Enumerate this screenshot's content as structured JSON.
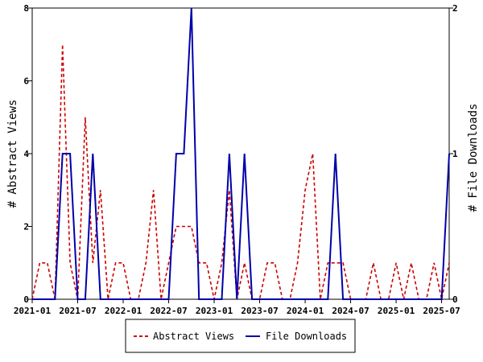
{
  "chart_data": {
    "type": "line",
    "title": "",
    "ylabel_left": "# Abstract Views",
    "ylabel_right": "# File Downloads",
    "xlabel": "",
    "x_tick_labels": [
      "2021-01",
      "2021-07",
      "2022-01",
      "2022-07",
      "2023-01",
      "2023-07",
      "2024-01",
      "2024-07",
      "2025-01",
      "2025-07"
    ],
    "y_left_ticks": [
      "0",
      "2",
      "4",
      "6",
      "8"
    ],
    "y_right_ticks": [
      "0",
      "1",
      "2"
    ],
    "ylim_left": [
      0,
      8
    ],
    "ylim_right": [
      0,
      2
    ],
    "xlim": [
      "2021-01",
      "2025-08"
    ],
    "x": [
      "2021-01",
      "2021-02",
      "2021-03",
      "2021-04",
      "2021-05",
      "2021-06",
      "2021-07",
      "2021-08",
      "2021-09",
      "2021-10",
      "2021-11",
      "2021-12",
      "2022-01",
      "2022-02",
      "2022-03",
      "2022-04",
      "2022-05",
      "2022-06",
      "2022-07",
      "2022-08",
      "2022-09",
      "2022-10",
      "2022-11",
      "2022-12",
      "2023-01",
      "2023-02",
      "2023-03",
      "2023-04",
      "2023-05",
      "2023-06",
      "2023-07",
      "2023-08",
      "2023-09",
      "2023-10",
      "2023-11",
      "2023-12",
      "2024-01",
      "2024-02",
      "2024-03",
      "2024-04",
      "2024-05",
      "2024-06",
      "2024-07",
      "2024-08",
      "2024-09",
      "2024-10",
      "2024-11",
      "2024-12",
      "2025-01",
      "2025-02",
      "2025-03",
      "2025-04",
      "2025-05",
      "2025-06",
      "2025-07",
      "2025-08"
    ],
    "series": [
      {
        "name": "Abstract Views",
        "axis": "left",
        "color": "#cc0000",
        "dash": true,
        "values": [
          0,
          1,
          1,
          0,
          7,
          1,
          0,
          5,
          1,
          3,
          0,
          1,
          1,
          0,
          0,
          1,
          3,
          0,
          1,
          2,
          2,
          2,
          1,
          1,
          0,
          1,
          3,
          0,
          1,
          0,
          0,
          1,
          1,
          0,
          0,
          1,
          3,
          4,
          0,
          1,
          1,
          1,
          0,
          0,
          0,
          1,
          0,
          0,
          1,
          0,
          1,
          0,
          0,
          1,
          0,
          1
        ]
      },
      {
        "name": "File Downloads",
        "axis": "right",
        "color": "#0000aa",
        "dash": false,
        "values": [
          0,
          0,
          0,
          0,
          1,
          1,
          0,
          0,
          1,
          0,
          0,
          0,
          0,
          0,
          0,
          0,
          0,
          0,
          0,
          1,
          1,
          2,
          0,
          0,
          0,
          0,
          1,
          0,
          1,
          0,
          0,
          0,
          0,
          0,
          0,
          0,
          0,
          0,
          0,
          0,
          1,
          0,
          0,
          0,
          0,
          0,
          0,
          0,
          0,
          0,
          0,
          0,
          0,
          0,
          0,
          1
        ]
      }
    ],
    "grid": false,
    "legend_position": "bottom"
  },
  "colors": {
    "views": "#cc0000",
    "downloads": "#0000aa",
    "axis": "#000000",
    "background": "#ffffff"
  }
}
